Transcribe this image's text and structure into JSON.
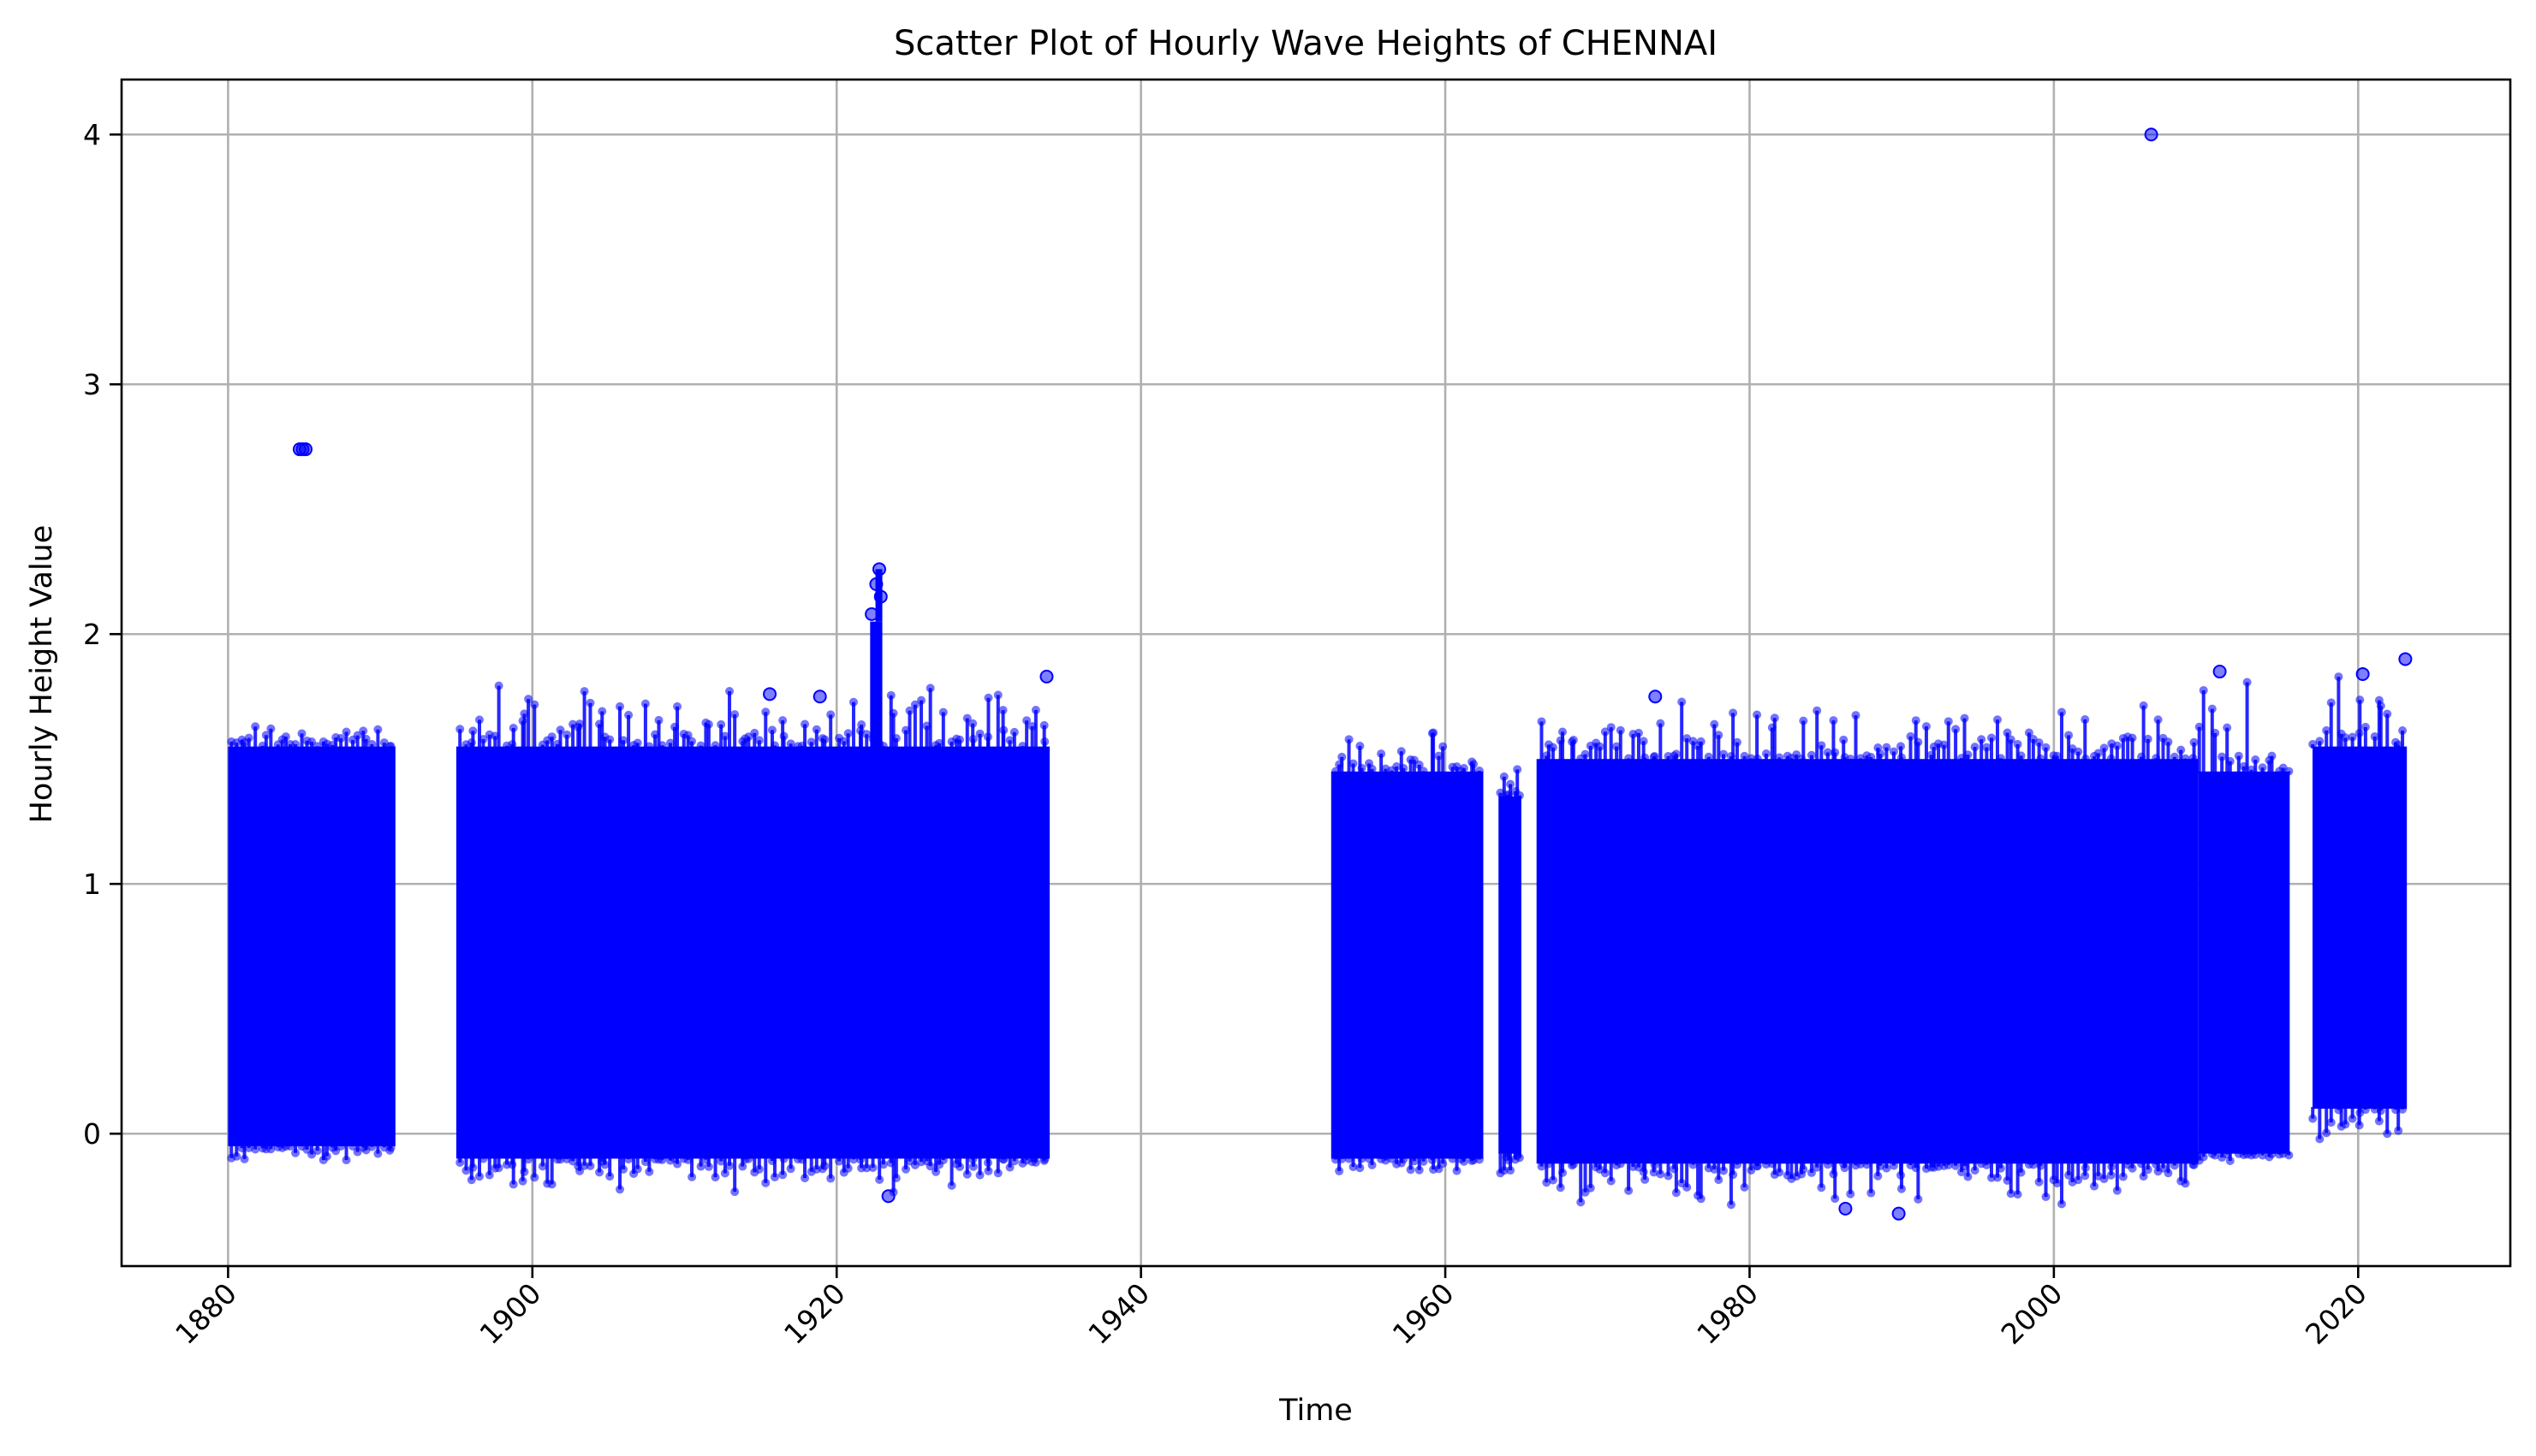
{
  "chart_data": {
    "type": "scatter",
    "title": "Scatter Plot of Hourly Wave Heights of CHENNAI",
    "xlabel": "Time",
    "ylabel": "Hourly Height Value",
    "xlim": [
      1873,
      2030
    ],
    "ylim": [
      -0.53,
      4.22
    ],
    "x_ticks": [
      1880,
      1900,
      1920,
      1940,
      1960,
      1980,
      2000,
      2020
    ],
    "y_ticks": [
      0,
      1,
      2,
      3,
      4
    ],
    "grid": true,
    "color": "#0000ff",
    "marker_alpha": 0.5,
    "series": [
      {
        "segments": [
          {
            "x_start": 1880.0,
            "x_end": 1891.0,
            "y_low": -0.05,
            "y_high": 1.55,
            "y_max": 1.65,
            "y_min": -0.12
          },
          {
            "x_start": 1895.0,
            "x_end": 1934.0,
            "y_low": -0.1,
            "y_high": 1.55,
            "y_max": 1.83,
            "y_min": -0.25
          },
          {
            "x_start": 1952.5,
            "x_end": 1962.5,
            "y_low": -0.1,
            "y_high": 1.45,
            "y_max": 1.66,
            "y_min": -0.18
          },
          {
            "x_start": 1963.5,
            "x_end": 1965.0,
            "y_low": -0.08,
            "y_high": 1.35,
            "y_max": 1.49,
            "y_min": -0.18
          },
          {
            "x_start": 1966.0,
            "x_end": 2009.5,
            "y_low": -0.12,
            "y_high": 1.5,
            "y_max": 1.75,
            "y_min": -0.32
          },
          {
            "x_start": 2009.5,
            "x_end": 2015.5,
            "y_low": -0.08,
            "y_high": 1.45,
            "y_max": 1.85,
            "y_min": -0.12
          },
          {
            "x_start": 2017.0,
            "x_end": 2023.2,
            "y_low": 0.1,
            "y_high": 1.55,
            "y_max": 1.9,
            "y_min": -0.1
          }
        ],
        "points": [
          {
            "x": 1884.7,
            "y": 2.74
          },
          {
            "x": 1884.9,
            "y": 2.74
          },
          {
            "x": 1885.1,
            "y": 2.74
          },
          {
            "x": 1922.3,
            "y": 2.08
          },
          {
            "x": 1922.6,
            "y": 2.2
          },
          {
            "x": 1922.8,
            "y": 2.26
          },
          {
            "x": 1922.9,
            "y": 2.15
          },
          {
            "x": 2006.4,
            "y": 4.0
          },
          {
            "x": 1915.6,
            "y": 1.76
          },
          {
            "x": 1918.9,
            "y": 1.75
          },
          {
            "x": 1933.8,
            "y": 1.83
          },
          {
            "x": 1973.8,
            "y": 1.75
          },
          {
            "x": 2010.9,
            "y": 1.85
          },
          {
            "x": 2020.3,
            "y": 1.84
          },
          {
            "x": 2023.1,
            "y": 1.9
          },
          {
            "x": 1989.8,
            "y": -0.32
          },
          {
            "x": 1986.3,
            "y": -0.3
          },
          {
            "x": 1923.4,
            "y": -0.25
          }
        ]
      }
    ]
  }
}
